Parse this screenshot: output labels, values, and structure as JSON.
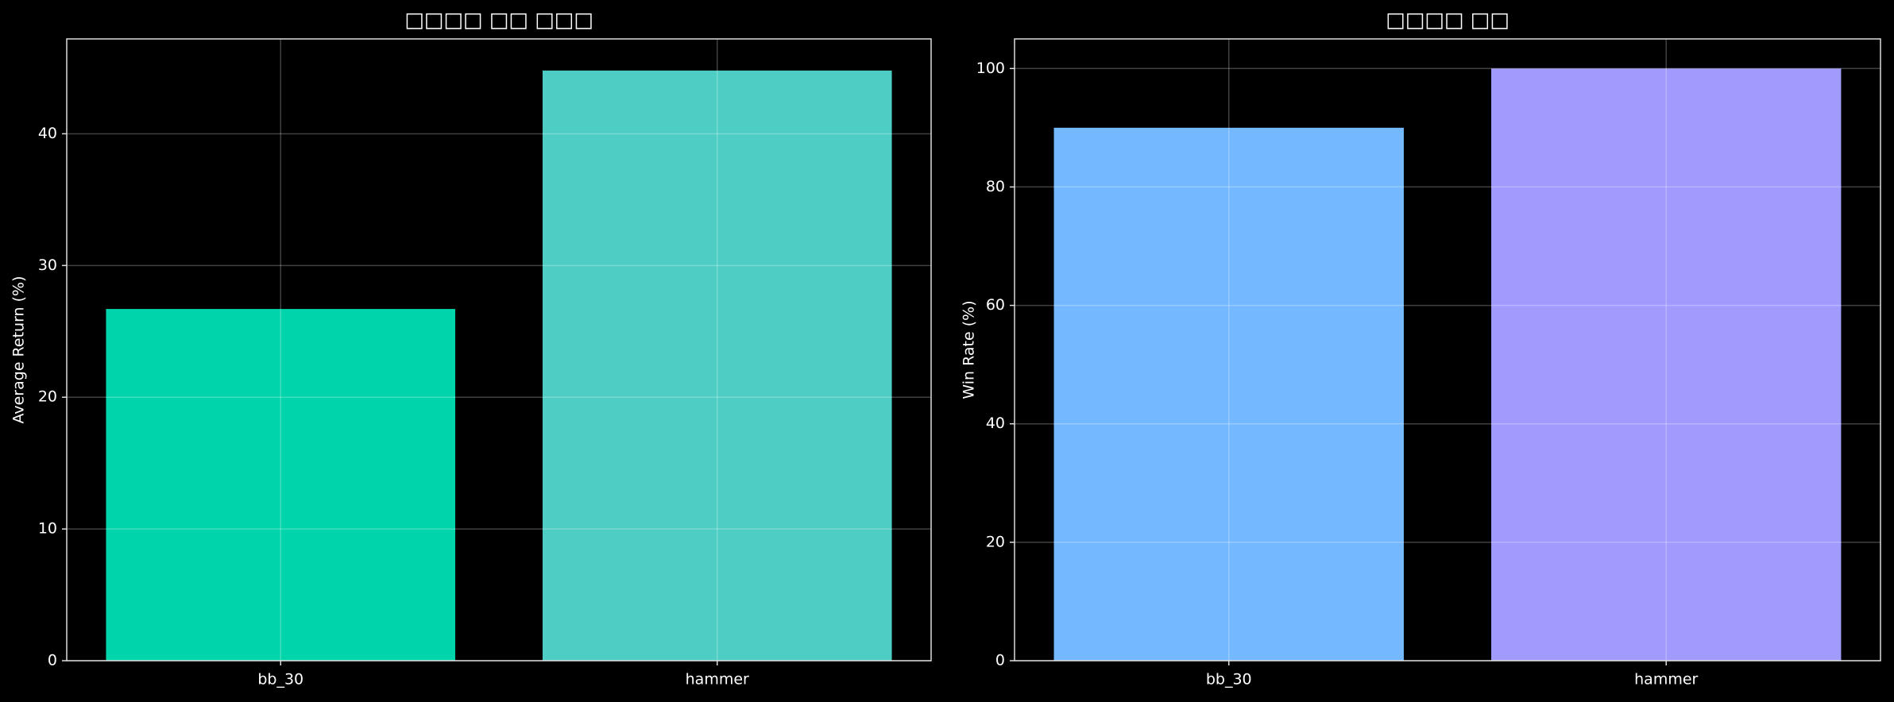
{
  "chart_data": [
    {
      "type": "bar",
      "title": "□□□□ □□ □□□",
      "ylabel": "Average Return (%)",
      "categories": [
        "bb_30",
        "hammer"
      ],
      "values": [
        26.7,
        44.8
      ],
      "colors": [
        "#00d4aa",
        "#4ecdc4"
      ],
      "ylim": [
        0,
        47.2
      ],
      "yticks": [
        0,
        10,
        20,
        30,
        40
      ],
      "grid": true
    },
    {
      "type": "bar",
      "title": "□□□□ □□",
      "ylabel": "Win Rate (%)",
      "categories": [
        "bb_30",
        "hammer"
      ],
      "values": [
        90,
        100
      ],
      "colors": [
        "#74b9ff",
        "#a29bfe"
      ],
      "ylim": [
        0,
        105
      ],
      "yticks": [
        0,
        20,
        40,
        60,
        80,
        100
      ],
      "grid": true
    }
  ]
}
